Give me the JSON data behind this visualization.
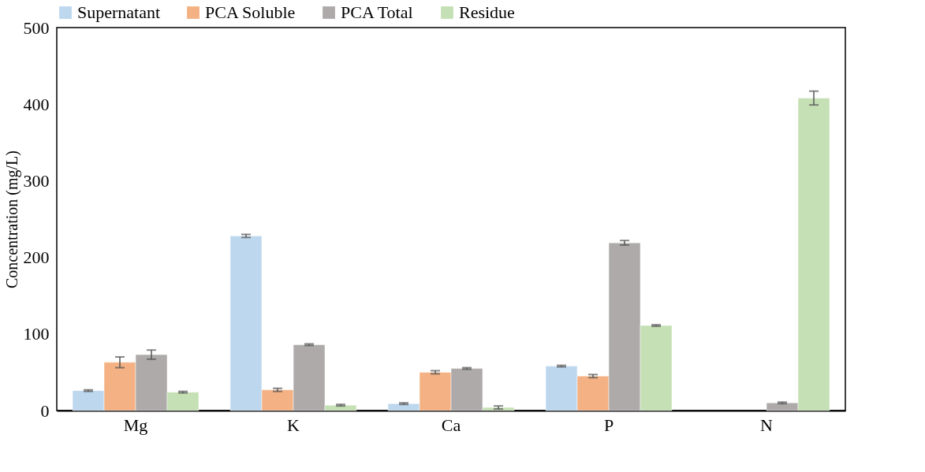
{
  "chart_data": {
    "type": "bar",
    "ylabel": "Concentration (mg/L)",
    "categories": [
      "Mg",
      "K",
      "Ca",
      "P",
      "N"
    ],
    "series": [
      {
        "name": "Supernatant",
        "color": "#bdd7ee",
        "values": [
          26,
          228,
          9,
          58,
          null
        ],
        "errors": [
          1,
          2,
          1,
          1,
          null
        ]
      },
      {
        "name": "PCA Soluble",
        "color": "#f4b183",
        "values": [
          63,
          27,
          50,
          45,
          null
        ],
        "errors": [
          7,
          2,
          2,
          2,
          null
        ]
      },
      {
        "name": "PCA Total",
        "color": "#aeaaaa",
        "values": [
          73,
          86,
          55,
          219,
          10
        ],
        "errors": [
          6,
          1,
          1,
          3,
          1
        ]
      },
      {
        "name": "Residue",
        "color": "#c5e0b4",
        "values": [
          24,
          7,
          4,
          111,
          408
        ],
        "errors": [
          1,
          1,
          2,
          1,
          9
        ]
      }
    ],
    "ylim": [
      0,
      500
    ],
    "yticks": [
      0,
      100,
      200,
      300,
      400,
      500
    ],
    "grid": false,
    "legend": "top"
  }
}
